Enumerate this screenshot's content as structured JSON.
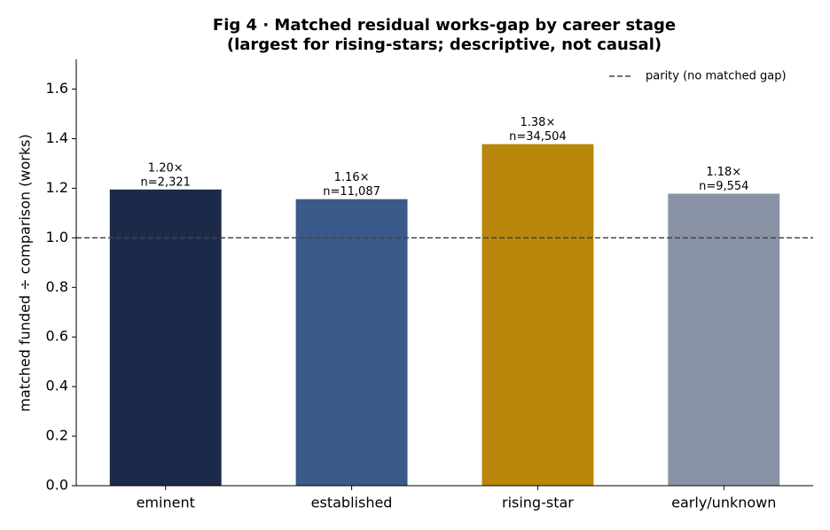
{
  "chart_data": {
    "type": "bar",
    "title": "Fig 4 · Matched residual works-gap by career stage",
    "subtitle": "(largest for rising-stars; descriptive, not causal)",
    "y_label": "matched funded ÷ comparison (works)",
    "categories": [
      "eminent",
      "established",
      "rising-star",
      "early/unknown"
    ],
    "values": [
      1.195,
      1.156,
      1.378,
      1.178
    ],
    "value_labels": [
      "1.20×",
      "1.16×",
      "1.38×",
      "1.18×"
    ],
    "count_labels": [
      "n=2,321",
      "n=11,087",
      "n=34,504",
      "n=9,554"
    ],
    "colors": [
      "#1c2a4a",
      "#3a5a8a",
      "#b8860b",
      "#8a93a6"
    ],
    "ylim": [
      0,
      1.72
    ],
    "yticks": [
      {
        "value": 0,
        "label": "0.0"
      },
      0.2,
      0.4,
      0.6,
      0.8,
      {
        "value": 1,
        "label": "1.0"
      },
      1.2,
      1.4,
      1.6
    ],
    "reference_line": {
      "value": 1,
      "label": "parity (no matched gap)",
      "color": "#444444"
    },
    "legend": "upper right"
  }
}
